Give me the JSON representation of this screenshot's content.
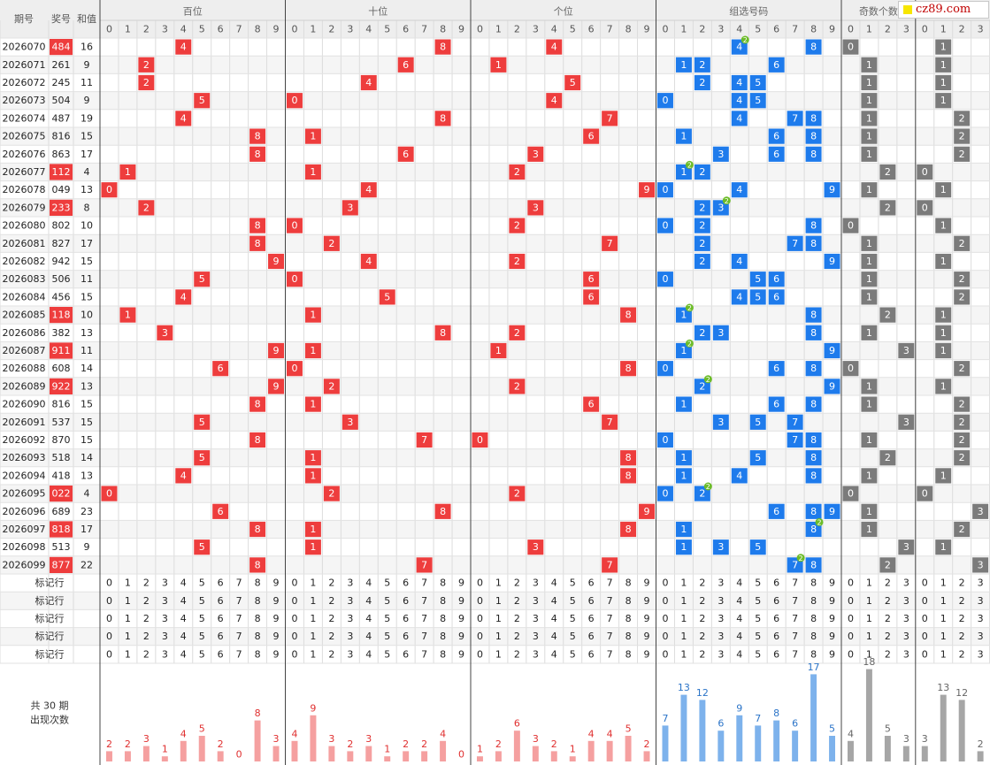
{
  "header": {
    "period_label": "期号",
    "prize_label": "奖号",
    "sum_label": "和值",
    "groups": [
      "百位",
      "十位",
      "个位",
      "组选号码",
      "奇数个数",
      ""
    ]
  },
  "brand": {
    "text": "cz89.com",
    "square_color": "#f7e600",
    "text_color": "#c00000"
  },
  "colors": {
    "red": "#ee3d3d",
    "blue": "#1e7bec",
    "gray": "#7b7b7b",
    "badge": "#6cbc28",
    "row_alt": "#f5f5f5",
    "header_bg": "#eeeeee",
    "bar_red": "#f5a0a0",
    "bar_blue": "#7db2ec",
    "bar_gray": "#a6a6a6",
    "label_blue": "#2b74c8",
    "label_red": "#e03030"
  },
  "rows": [
    {
      "p": "2026070",
      "n": "484",
      "s": "16",
      "odd": 0,
      "big": 1
    },
    {
      "p": "2026071",
      "n": "261",
      "s": "9",
      "odd": 1,
      "big": 1
    },
    {
      "p": "2026072",
      "n": "245",
      "s": "11",
      "odd": 1,
      "big": 1
    },
    {
      "p": "2026073",
      "n": "504",
      "s": "9",
      "odd": 1,
      "big": 1
    },
    {
      "p": "2026074",
      "n": "487",
      "s": "19",
      "odd": 1,
      "big": 2
    },
    {
      "p": "2026075",
      "n": "816",
      "s": "15",
      "odd": 1,
      "big": 2
    },
    {
      "p": "2026076",
      "n": "863",
      "s": "17",
      "odd": 1,
      "big": 2
    },
    {
      "p": "2026077",
      "n": "112",
      "s": "4",
      "odd": 2,
      "big": 0
    },
    {
      "p": "2026078",
      "n": "049",
      "s": "13",
      "odd": 1,
      "big": 1
    },
    {
      "p": "2026079",
      "n": "233",
      "s": "8",
      "odd": 2,
      "big": 0
    },
    {
      "p": "2026080",
      "n": "802",
      "s": "10",
      "odd": 0,
      "big": 1
    },
    {
      "p": "2026081",
      "n": "827",
      "s": "17",
      "odd": 1,
      "big": 2
    },
    {
      "p": "2026082",
      "n": "942",
      "s": "15",
      "odd": 1,
      "big": 1
    },
    {
      "p": "2026083",
      "n": "506",
      "s": "11",
      "odd": 1,
      "big": 2
    },
    {
      "p": "2026084",
      "n": "456",
      "s": "15",
      "odd": 1,
      "big": 2
    },
    {
      "p": "2026085",
      "n": "118",
      "s": "10",
      "odd": 2,
      "big": 1
    },
    {
      "p": "2026086",
      "n": "382",
      "s": "13",
      "odd": 1,
      "big": 1
    },
    {
      "p": "2026087",
      "n": "911",
      "s": "11",
      "odd": 3,
      "big": 1
    },
    {
      "p": "2026088",
      "n": "608",
      "s": "14",
      "odd": 0,
      "big": 2
    },
    {
      "p": "2026089",
      "n": "922",
      "s": "13",
      "odd": 1,
      "big": 1
    },
    {
      "p": "2026090",
      "n": "816",
      "s": "15",
      "odd": 1,
      "big": 2
    },
    {
      "p": "2026091",
      "n": "537",
      "s": "15",
      "odd": 3,
      "big": 2
    },
    {
      "p": "2026092",
      "n": "870",
      "s": "15",
      "odd": 1,
      "big": 2
    },
    {
      "p": "2026093",
      "n": "518",
      "s": "14",
      "odd": 2,
      "big": 2
    },
    {
      "p": "2026094",
      "n": "418",
      "s": "13",
      "odd": 1,
      "big": 1
    },
    {
      "p": "2026095",
      "n": "022",
      "s": "4",
      "odd": 0,
      "big": 0
    },
    {
      "p": "2026096",
      "n": "689",
      "s": "23",
      "odd": 1,
      "big": 3
    },
    {
      "p": "2026097",
      "n": "818",
      "s": "17",
      "odd": 1,
      "big": 2
    },
    {
      "p": "2026098",
      "n": "513",
      "s": "9",
      "odd": 3,
      "big": 1
    },
    {
      "p": "2026099",
      "n": "877",
      "s": "22",
      "odd": 2,
      "big": 3
    }
  ],
  "marker_label": "标记行",
  "marker_rows": 5,
  "summary_label": "共 30 期\n出现次数",
  "chart_data": {
    "type": "bar",
    "groups": [
      {
        "name": "百位",
        "categories": [
          "0",
          "1",
          "2",
          "3",
          "4",
          "5",
          "6",
          "7",
          "8",
          "9"
        ],
        "values": [
          2,
          2,
          3,
          1,
          4,
          5,
          2,
          0,
          8,
          3
        ]
      },
      {
        "name": "十位",
        "categories": [
          "0",
          "1",
          "2",
          "3",
          "4",
          "5",
          "6",
          "7",
          "8",
          "9"
        ],
        "values": [
          4,
          9,
          3,
          2,
          3,
          1,
          2,
          2,
          4,
          0
        ]
      },
      {
        "name": "个位",
        "categories": [
          "0",
          "1",
          "2",
          "3",
          "4",
          "5",
          "6",
          "7",
          "8",
          "9"
        ],
        "values": [
          1,
          2,
          6,
          3,
          2,
          1,
          4,
          4,
          5,
          2
        ]
      },
      {
        "name": "组选号码",
        "categories": [
          "0",
          "1",
          "2",
          "3",
          "4",
          "5",
          "6",
          "7",
          "8",
          "9"
        ],
        "values": [
          7,
          13,
          12,
          6,
          9,
          7,
          8,
          6,
          17,
          5
        ]
      },
      {
        "name": "奇数个数",
        "categories": [
          "0",
          "1",
          "2",
          "3"
        ],
        "values": [
          4,
          18,
          5,
          3
        ]
      },
      {
        "name": "",
        "categories": [
          "0",
          "1",
          "2",
          "3"
        ],
        "values": [
          3,
          13,
          12,
          2
        ]
      }
    ]
  }
}
